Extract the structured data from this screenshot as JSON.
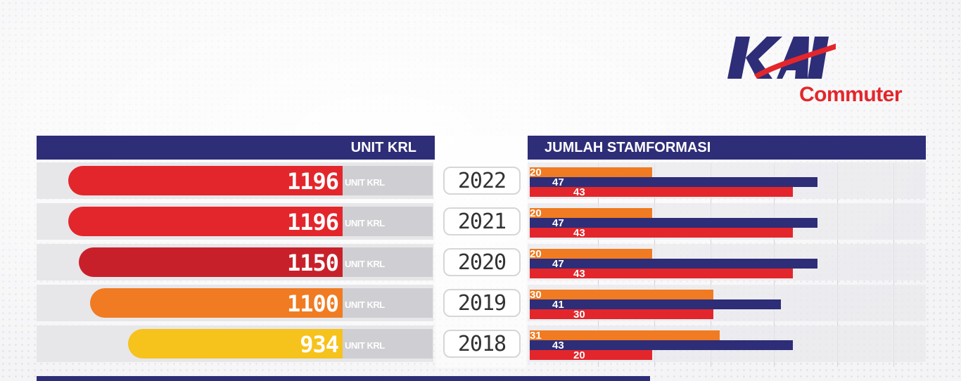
{
  "brand": {
    "logo_text": "KAI",
    "logo_sub": "Commuter",
    "colors": {
      "navy": "#2e2d78",
      "red": "#e3262b"
    }
  },
  "headers": {
    "left": "UNIT KRL",
    "right": "JUMLAH STAMFORMASI"
  },
  "chart_data": [
    {
      "type": "bar",
      "title": "UNIT KRL",
      "categories": [
        "2022",
        "2021",
        "2020",
        "2019",
        "2018"
      ],
      "values": [
        1196,
        1196,
        1150,
        1100,
        934
      ],
      "unit_label": "UNIT KRL",
      "colors": [
        "#e3262b",
        "#e3262b",
        "#c8202a",
        "#f07b22",
        "#f6c21c"
      ]
    },
    {
      "type": "bar",
      "title": "JUMLAH STAMFORMASI",
      "categories": [
        "2022",
        "2021",
        "2020",
        "2019",
        "2018"
      ],
      "series": [
        {
          "values": [
            20,
            20,
            20,
            30,
            31
          ],
          "color": "#f07b22"
        },
        {
          "values": [
            47,
            47,
            47,
            41,
            43
          ],
          "color": "#2e2d78"
        },
        {
          "values": [
            43,
            43,
            43,
            30,
            20
          ],
          "color": "#e3262b"
        }
      ]
    }
  ]
}
